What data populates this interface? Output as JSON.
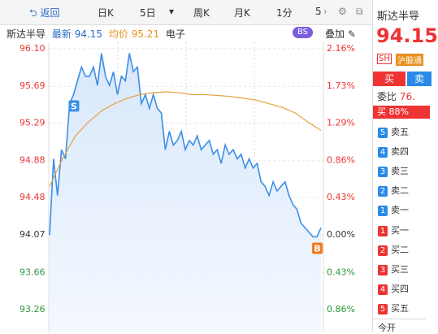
{
  "toolbar": {
    "back": "返回",
    "tabs": [
      "日K",
      "5日",
      "周K",
      "月K",
      "1分",
      "5"
    ]
  },
  "info": {
    "name": "斯达半导",
    "latest_label": "最新",
    "latest": "94.15",
    "avg_label": "均价",
    "avg": "95.21",
    "sector": "电子",
    "bs": "BS",
    "overlay": "叠加"
  },
  "chart": {
    "ylim": [
      93.01,
      96.17
    ],
    "yticks": [
      {
        "value": 96.1,
        "label": "96.10"
      },
      {
        "value": 95.69,
        "label": "95.69"
      },
      {
        "value": 95.29,
        "label": "95.29"
      },
      {
        "value": 94.88,
        "label": "94.88"
      },
      {
        "value": 94.48,
        "label": "94.48"
      },
      {
        "value": 94.07,
        "label": "94.07"
      },
      {
        "value": 93.66,
        "label": "93.66"
      },
      {
        "value": 93.26,
        "label": "93.26"
      }
    ],
    "y2ticks": [
      {
        "value": 2.16,
        "label": "2.16%"
      },
      {
        "value": 1.73,
        "label": "1.73%"
      },
      {
        "value": 1.29,
        "label": "1.29%"
      },
      {
        "value": 0.86,
        "label": "0.86%"
      },
      {
        "value": 0.43,
        "label": "0.43%"
      },
      {
        "value": 0,
        "label": "0.00%"
      },
      {
        "value": -0.43,
        "label": "0.43%"
      },
      {
        "value": -0.86,
        "label": "0.86%"
      }
    ],
    "price": [
      94.07,
      94.9,
      94.5,
      95.0,
      94.9,
      95.5,
      95.6,
      95.75,
      95.9,
      95.8,
      95.8,
      95.9,
      95.7,
      96.05,
      95.8,
      95.7,
      95.85,
      95.6,
      95.8,
      95.75,
      96.05,
      95.85,
      95.9,
      95.5,
      95.6,
      95.45,
      95.6,
      95.45,
      95.4,
      95.0,
      95.2,
      95.05,
      95.1,
      95.2,
      95.0,
      95.1,
      95.05,
      95.15,
      95.0,
      95.05,
      95.1,
      94.95,
      95.0,
      94.85,
      95.05,
      94.95,
      95.0,
      94.9,
      94.95,
      94.8,
      94.9,
      94.8,
      94.85,
      94.65,
      94.6,
      94.5,
      94.65,
      94.55,
      94.6,
      94.65,
      94.5,
      94.4,
      94.35,
      94.2,
      94.15,
      94.1,
      94.05,
      94.05,
      94.15
    ],
    "avg": [
      94.6,
      94.9,
      95.15,
      95.3,
      95.42,
      95.5,
      95.56,
      95.6,
      95.62,
      95.63,
      95.62,
      95.6,
      95.6,
      95.59,
      95.58,
      95.56,
      95.54,
      95.5,
      95.46,
      95.4,
      95.3,
      95.21
    ],
    "markers": {
      "sell": "S",
      "buy": "B"
    }
  },
  "side": {
    "name": "斯达半导",
    "price": "94.15",
    "badges": [
      "SH",
      "沪股通"
    ],
    "buy": "买",
    "sell": "卖",
    "ratio_label": "委比",
    "ratio": "76.",
    "buy_pct": "买 88%",
    "asks": [
      {
        "n": "5",
        "label": "卖五"
      },
      {
        "n": "4",
        "label": "卖四"
      },
      {
        "n": "3",
        "label": "卖三"
      },
      {
        "n": "2",
        "label": "卖二"
      },
      {
        "n": "1",
        "label": "卖一"
      }
    ],
    "bids": [
      {
        "n": "1",
        "label": "买一"
      },
      {
        "n": "2",
        "label": "买二"
      },
      {
        "n": "3",
        "label": "买三"
      },
      {
        "n": "4",
        "label": "买四"
      },
      {
        "n": "5",
        "label": "买五"
      }
    ],
    "open": "今开"
  }
}
